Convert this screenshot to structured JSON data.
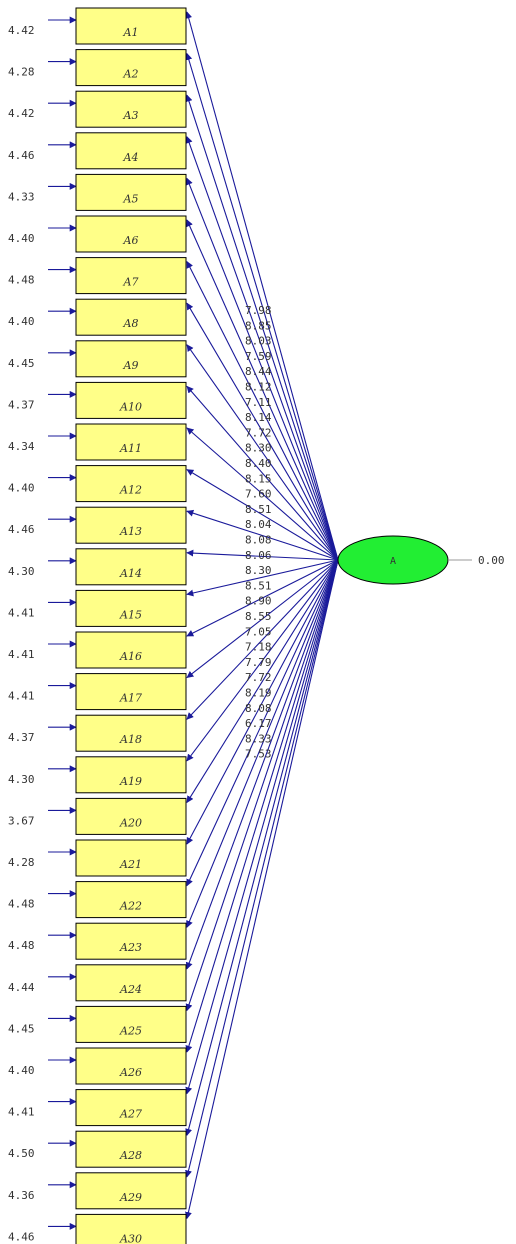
{
  "colors": {
    "box_fill": "#ffff88",
    "box_stroke": "#000000",
    "arrow": "#1a1a9a",
    "latent_fill": "#22ee33",
    "latent_stroke": "#000000",
    "text": "#333333",
    "latent_error_line": "#999999"
  },
  "latent": {
    "label": "A",
    "error_variance": "0.00"
  },
  "indicators": [
    {
      "label": "A1",
      "error": "4.42",
      "loading": "7.98"
    },
    {
      "label": "A2",
      "error": "4.28",
      "loading": "8.85"
    },
    {
      "label": "A3",
      "error": "4.42",
      "loading": "8.03"
    },
    {
      "label": "A4",
      "error": "4.46",
      "loading": "7.59"
    },
    {
      "label": "A5",
      "error": "4.33",
      "loading": "8.44"
    },
    {
      "label": "A6",
      "error": "4.40",
      "loading": "8.12"
    },
    {
      "label": "A7",
      "error": "4.48",
      "loading": "7.11"
    },
    {
      "label": "A8",
      "error": "4.40",
      "loading": "8.14"
    },
    {
      "label": "A9",
      "error": "4.45",
      "loading": "7.72"
    },
    {
      "label": "A10",
      "error": "4.37",
      "loading": "8.30"
    },
    {
      "label": "A11",
      "error": "4.34",
      "loading": "8.40"
    },
    {
      "label": "A12",
      "error": "4.40",
      "loading": "8.15"
    },
    {
      "label": "A13",
      "error": "4.46",
      "loading": "7.60"
    },
    {
      "label": "A14",
      "error": "4.30",
      "loading": "8.51"
    },
    {
      "label": "A15",
      "error": "4.41",
      "loading": "8.04"
    },
    {
      "label": "A16",
      "error": "4.41",
      "loading": "8.08"
    },
    {
      "label": "A17",
      "error": "4.41",
      "loading": "8.06"
    },
    {
      "label": "A18",
      "error": "4.37",
      "loading": "8.30"
    },
    {
      "label": "A19",
      "error": "4.30",
      "loading": "8.51"
    },
    {
      "label": "A20",
      "error": "3.67",
      "loading": "8.90"
    },
    {
      "label": "A21",
      "error": "4.28",
      "loading": "8.55"
    },
    {
      "label": "A22",
      "error": "4.48",
      "loading": "7.05"
    },
    {
      "label": "A23",
      "error": "4.48",
      "loading": "7.18"
    },
    {
      "label": "A24",
      "error": "4.44",
      "loading": "7.79"
    },
    {
      "label": "A25",
      "error": "4.45",
      "loading": "7.72"
    },
    {
      "label": "A26",
      "error": "4.40",
      "loading": "8.19"
    },
    {
      "label": "A27",
      "error": "4.41",
      "loading": "8.08"
    },
    {
      "label": "A28",
      "error": "4.50",
      "loading": "6.17"
    },
    {
      "label": "A29",
      "error": "4.36",
      "loading": "8.33"
    },
    {
      "label": "A30",
      "error": "4.46",
      "loading": "7.53"
    }
  ]
}
